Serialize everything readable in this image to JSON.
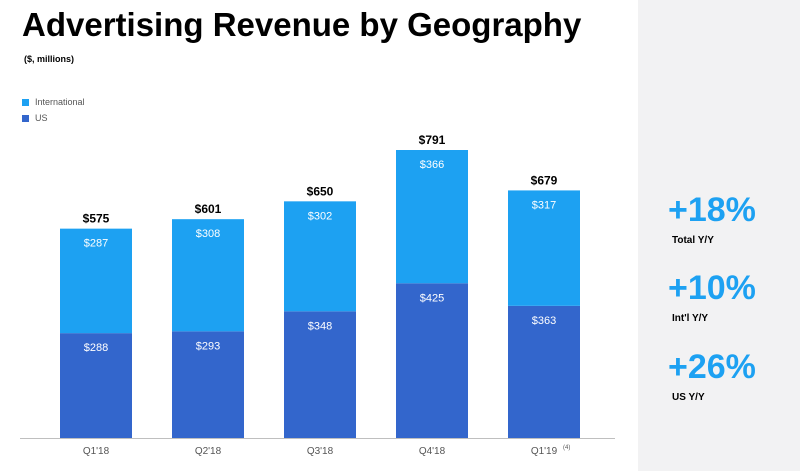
{
  "colors": {
    "international": "#1da1f2",
    "us": "#3366cc",
    "accent": "#1da1f2",
    "panel": "#f2f2f3"
  },
  "chart_data": {
    "type": "bar",
    "stacked": true,
    "title": "Advertising Revenue by Geography",
    "subtitle": "($, millions)",
    "categories": [
      "Q1'18",
      "Q2'18",
      "Q3'18",
      "Q4'18",
      "Q1'19"
    ],
    "category_notes": [
      "",
      "",
      "",
      "",
      "(4)"
    ],
    "series": [
      {
        "name": "US",
        "values": [
          288,
          293,
          348,
          425,
          363
        ],
        "labels": [
          "$288",
          "$293",
          "$348",
          "$425",
          "$363"
        ]
      },
      {
        "name": "International",
        "values": [
          287,
          308,
          302,
          366,
          317
        ],
        "labels": [
          "$287",
          "$308",
          "$302",
          "$366",
          "$317"
        ]
      }
    ],
    "totals": [
      575,
      601,
      650,
      791,
      679
    ],
    "total_labels": [
      "$575",
      "$601",
      "$650",
      "$791",
      "$679"
    ],
    "legend": [
      "International",
      "US"
    ],
    "ylim": [
      0,
      791
    ],
    "xlabel": "",
    "ylabel": ""
  },
  "legend": {
    "international": "International",
    "us": "US"
  },
  "stats": [
    {
      "value": "+18%",
      "label": "Total Y/Y"
    },
    {
      "value": "+10%",
      "label": "Int'l Y/Y"
    },
    {
      "value": "+26%",
      "label": "US Y/Y"
    }
  ]
}
